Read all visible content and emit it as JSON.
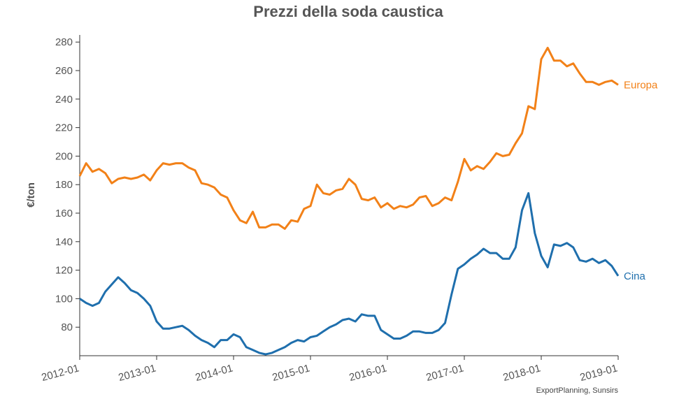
{
  "chart_data": {
    "type": "line",
    "title": "Prezzi della soda caustica",
    "xlabel": "",
    "ylabel": "€/ton",
    "ylim": [
      60,
      285
    ],
    "yticks": [
      80,
      100,
      120,
      140,
      160,
      180,
      200,
      220,
      240,
      260,
      280
    ],
    "xticks": [
      "2012-01",
      "2013-01",
      "2014-01",
      "2015-01",
      "2016-01",
      "2017-01",
      "2018-01",
      "2019-01"
    ],
    "x_start": "2012-01",
    "x_end": "2019-01",
    "grid": false,
    "source": "ExportPlanning, Sunsirs",
    "series": [
      {
        "name": "Europa",
        "color": "#f28118",
        "values": [
          186,
          195,
          189,
          191,
          188,
          181,
          184,
          185,
          184,
          185,
          187,
          183,
          190,
          195,
          194,
          195,
          195,
          192,
          190,
          181,
          180,
          178,
          173,
          171,
          162,
          155,
          153,
          161,
          150,
          150,
          152,
          152,
          149,
          155,
          154,
          163,
          165,
          180,
          174,
          173,
          176,
          177,
          184,
          180,
          170,
          169,
          171,
          164,
          167,
          163,
          165,
          164,
          166,
          171,
          172,
          165,
          167,
          171,
          169,
          182,
          198,
          190,
          193,
          191,
          196,
          202,
          200,
          201,
          209,
          216,
          235,
          233,
          268,
          276,
          267,
          267,
          263,
          265,
          258,
          252,
          252,
          250,
          252,
          253,
          250
        ]
      },
      {
        "name": "Cina",
        "color": "#1f6fad",
        "values": [
          100,
          97,
          95,
          97,
          105,
          110,
          115,
          111,
          106,
          104,
          100,
          95,
          84,
          79,
          79,
          80,
          81,
          78,
          74,
          71,
          69,
          66,
          71,
          71,
          75,
          73,
          66,
          64,
          62,
          61,
          62,
          64,
          66,
          69,
          71,
          70,
          73,
          74,
          77,
          80,
          82,
          85,
          86,
          84,
          89,
          88,
          88,
          78,
          75,
          72,
          72,
          74,
          77,
          77,
          76,
          76,
          78,
          83,
          103,
          121,
          124,
          128,
          131,
          135,
          132,
          132,
          128,
          128,
          136,
          162,
          174,
          146,
          130,
          122,
          138,
          137,
          139,
          136,
          127,
          126,
          128,
          125,
          127,
          123,
          116
        ]
      }
    ]
  }
}
